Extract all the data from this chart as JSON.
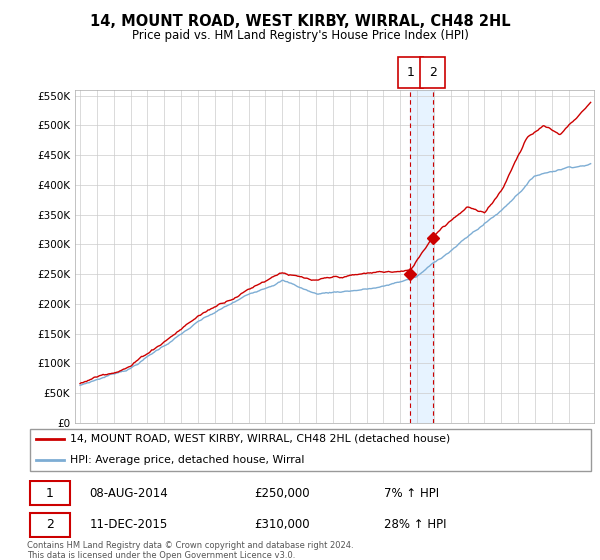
{
  "title": "14, MOUNT ROAD, WEST KIRBY, WIRRAL, CH48 2HL",
  "subtitle": "Price paid vs. HM Land Registry's House Price Index (HPI)",
  "ylim": [
    0,
    560000
  ],
  "yticks": [
    0,
    50000,
    100000,
    150000,
    200000,
    250000,
    300000,
    350000,
    400000,
    450000,
    500000,
    550000
  ],
  "ytick_labels": [
    "£0",
    "£50K",
    "£100K",
    "£150K",
    "£200K",
    "£250K",
    "£300K",
    "£350K",
    "£400K",
    "£450K",
    "£500K",
    "£550K"
  ],
  "legend_line1": "14, MOUNT ROAD, WEST KIRBY, WIRRAL, CH48 2HL (detached house)",
  "legend_line2": "HPI: Average price, detached house, Wirral",
  "transaction1_date": "08-AUG-2014",
  "transaction1_price": "£250,000",
  "transaction1_hpi": "7% ↑ HPI",
  "transaction2_date": "11-DEC-2015",
  "transaction2_price": "£310,000",
  "transaction2_hpi": "28% ↑ HPI",
  "sale_color": "#cc0000",
  "hpi_color": "#7dadd4",
  "vline_color": "#cc0000",
  "shaded_color": "#ddeeff",
  "footer": "Contains HM Land Registry data © Crown copyright and database right 2024.\nThis data is licensed under the Open Government Licence v3.0.",
  "sale1_x": 2014.6,
  "sale1_y": 250000,
  "sale2_x": 2015.93,
  "sale2_y": 310000,
  "xlim_left": 1994.7,
  "xlim_right": 2025.5
}
